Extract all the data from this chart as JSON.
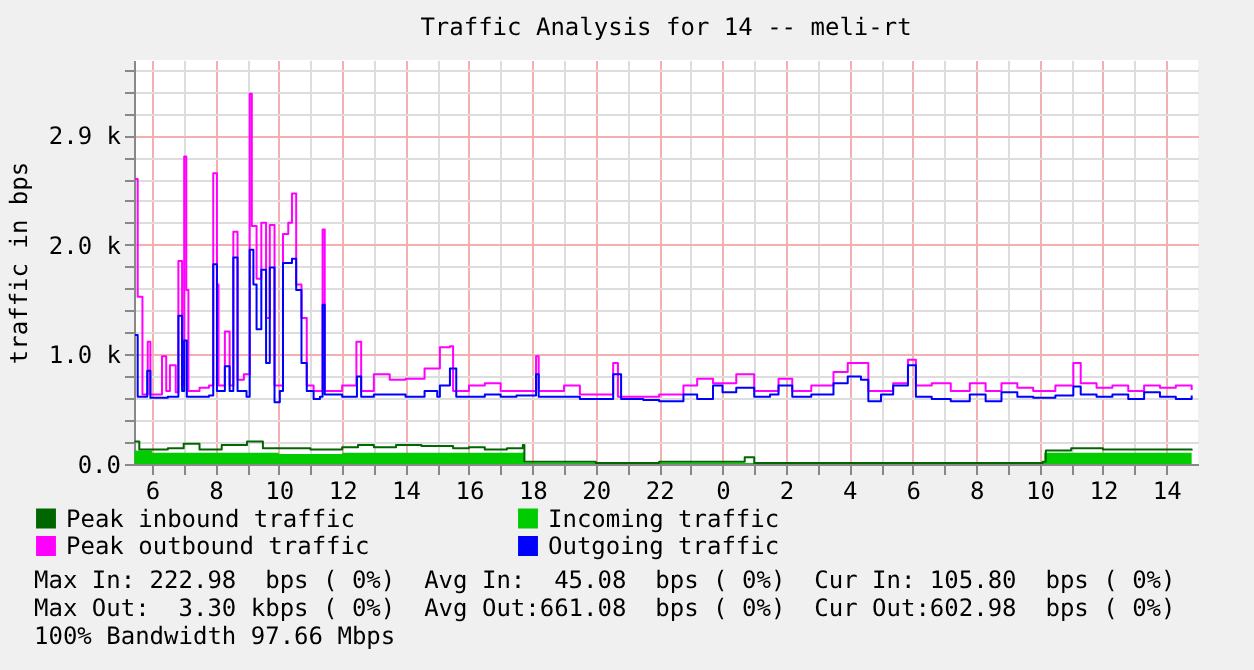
{
  "chart_data": {
    "type": "step",
    "title": "Traffic Analysis for 14 -- meli-rt",
    "ylabel": "traffic in bps",
    "xlim": [
      "--01-01T05:26",
      "--01-02T15:00"
    ],
    "xticks": [
      {
        "value": "--01-01T06:00",
        "label": "6"
      },
      {
        "value": "--01-01T07:00",
        "label": null
      },
      {
        "value": "--01-01T08:00",
        "label": "8"
      },
      {
        "value": "--01-01T09:00",
        "label": null
      },
      {
        "value": "--01-01T10:00",
        "label": "10"
      },
      {
        "value": "--01-01T11:00",
        "label": null
      },
      {
        "value": "--01-01T12:00",
        "label": "12"
      },
      {
        "value": "--01-01T13:00",
        "label": null
      },
      {
        "value": "--01-01T14:00",
        "label": "14"
      },
      {
        "value": "--01-01T15:00",
        "label": null
      },
      {
        "value": "--01-01T16:00",
        "label": "16"
      },
      {
        "value": "--01-01T17:00",
        "label": null
      },
      {
        "value": "--01-01T18:00",
        "label": "18"
      },
      {
        "value": "--01-01T19:00",
        "label": null
      },
      {
        "value": "--01-01T20:00",
        "label": "20"
      },
      {
        "value": "--01-01T21:00",
        "label": null
      },
      {
        "value": "--01-01T22:00",
        "label": "22"
      },
      {
        "value": "--01-01T23:00",
        "label": null
      },
      {
        "value": "--01-02T00:00",
        "label": "0"
      },
      {
        "value": "--01-02T01:00",
        "label": null
      },
      {
        "value": "--01-02T02:00",
        "label": "2"
      },
      {
        "value": "--01-02T03:00",
        "label": null
      },
      {
        "value": "--01-02T04:00",
        "label": "4"
      },
      {
        "value": "--01-02T05:00",
        "label": null
      },
      {
        "value": "--01-02T06:00",
        "label": "6"
      },
      {
        "value": "--01-02T07:00",
        "label": null
      },
      {
        "value": "--01-02T08:00",
        "label": "8"
      },
      {
        "value": "--01-02T09:00",
        "label": null
      },
      {
        "value": "--01-02T10:00",
        "label": "10"
      },
      {
        "value": "--01-02T11:00",
        "label": null
      },
      {
        "value": "--01-02T12:00",
        "label": "12"
      },
      {
        "value": "--01-02T13:00",
        "label": null
      },
      {
        "value": "--01-02T14:00",
        "label": "14"
      }
    ],
    "ylim": [
      0,
      3600
    ],
    "yticks": [
      {
        "value": 0,
        "label": "0.0"
      },
      {
        "value": 195,
        "label": null
      },
      {
        "value": 391,
        "label": null
      },
      {
        "value": 586,
        "label": null
      },
      {
        "value": 781,
        "label": null
      },
      {
        "value": 977,
        "label": "1.0 k"
      },
      {
        "value": 1172,
        "label": null
      },
      {
        "value": 1367,
        "label": null
      },
      {
        "value": 1563,
        "label": null
      },
      {
        "value": 1758,
        "label": null
      },
      {
        "value": 1953,
        "label": "2.0 k"
      },
      {
        "value": 2148,
        "label": null
      },
      {
        "value": 2344,
        "label": null
      },
      {
        "value": 2539,
        "label": null
      },
      {
        "value": 2734,
        "label": null
      },
      {
        "value": 2930,
        "label": "2.9 k"
      },
      {
        "value": 3125,
        "label": null
      },
      {
        "value": 3320,
        "label": null
      },
      {
        "value": 3516,
        "label": null
      }
    ],
    "grid": true,
    "legend": "bottom",
    "marker": "none",
    "line_style": "solid",
    "series": [
      {
        "name": "Peak inbound traffic",
        "color": "#006600",
        "x": [
          "--01-01T05:27",
          "--01-01T05:36",
          "--01-01T06:30",
          "--01-01T07:00",
          "--01-01T07:30",
          "--01-01T08:12",
          "--01-01T09:00",
          "--01-01T09:30",
          "--01-01T10:30",
          "--01-01T11:00",
          "--01-01T12:00",
          "--01-01T12:30",
          "--01-01T13:00",
          "--01-01T13:42",
          "--01-01T14:30",
          "--01-01T15:30",
          "--01-01T16:00",
          "--01-01T16:30",
          "--01-01T17:12",
          "--01-01T17:42",
          "--01-01T17:45",
          "--01-01T20:00",
          "--01-01T22:00",
          "--01-02T00:00",
          "--01-02T00:42",
          "--01-02T01:00",
          "--01-02T04:00",
          "--01-02T08:00",
          "--01-02T10:06",
          "--01-02T10:12",
          "--01-02T11:00",
          "--01-02T12:00",
          "--01-02T13:00",
          "--01-02T14:00",
          "--01-02T14:48"
        ],
        "values": [
          200,
          130,
          140,
          180,
          130,
          170,
          200,
          140,
          140,
          130,
          150,
          170,
          150,
          170,
          160,
          140,
          150,
          130,
          140,
          170,
          20,
          10,
          20,
          20,
          60,
          10,
          10,
          10,
          20,
          120,
          140,
          130,
          130,
          130,
          120
        ]
      },
      {
        "name": "Incoming traffic",
        "type": "area",
        "color": "#00cc00",
        "x": [
          "--01-01T05:27",
          "--01-01T06:00",
          "--01-01T08:00",
          "--01-01T10:00",
          "--01-01T12:00",
          "--01-01T14:00",
          "--01-01T16:00",
          "--01-01T17:42",
          "--01-01T17:45",
          "--01-01T20:00",
          "--01-02T00:00",
          "--01-02T04:00",
          "--01-02T10:06",
          "--01-02T10:09",
          "--01-02T12:00",
          "--01-02T14:48"
        ],
        "values": [
          120,
          100,
          100,
          90,
          100,
          100,
          100,
          110,
          10,
          10,
          10,
          10,
          10,
          100,
          100,
          110
        ]
      },
      {
        "name": "Peak outbound traffic",
        "color": "#ff00ff",
        "x": [
          "--01-01T05:28",
          "--01-01T05:33",
          "--01-01T05:42",
          "--01-01T05:52",
          "--01-01T05:57",
          "--01-01T06:19",
          "--01-01T06:27",
          "--01-01T06:34",
          "--01-01T06:45",
          "--01-01T06:50",
          "--01-01T06:57",
          "--01-01T07:01",
          "--01-01T07:05",
          "--01-01T07:09",
          "--01-01T07:30",
          "--01-01T07:48",
          "--01-01T07:56",
          "--01-01T08:03",
          "--01-01T08:06",
          "--01-01T08:18",
          "--01-01T08:27",
          "--01-01T08:34",
          "--01-01T08:42",
          "--01-01T08:54",
          "--01-01T09:05",
          "--01-01T09:09",
          "--01-01T09:18",
          "--01-01T09:27",
          "--01-01T09:36",
          "--01-01T09:43",
          "--01-01T09:52",
          "--01-01T10:00",
          "--01-01T10:08",
          "--01-01T10:18",
          "--01-01T10:25",
          "--01-01T10:33",
          "--01-01T10:43",
          "--01-01T10:53",
          "--01-01T11:06",
          "--01-01T11:23",
          "--01-01T11:27",
          "--01-01T12:00",
          "--01-01T12:27",
          "--01-01T12:36",
          "--01-01T13:00",
          "--01-01T13:30",
          "--01-01T14:00",
          "--01-01T14:36",
          "--01-01T15:05",
          "--01-01T15:24",
          "--01-01T15:30",
          "--01-01T16:00",
          "--01-01T16:30",
          "--01-01T17:00",
          "--01-01T17:30",
          "--01-01T18:07",
          "--01-01T18:12",
          "--01-01T19:00",
          "--01-01T19:30",
          "--01-01T20:33",
          "--01-01T20:42",
          "--01-01T21:30",
          "--01-01T22:00",
          "--01-01T22:46",
          "--01-01T23:12",
          "--01-01T23:42",
          "--01-02T00:26",
          "--01-02T01:00",
          "--01-02T01:46",
          "--01-02T02:12",
          "--01-02T02:48",
          "--01-02T03:30",
          "--01-02T03:57",
          "--01-02T04:22",
          "--01-02T04:36",
          "--01-02T05:23",
          "--01-02T05:51",
          "--01-02T06:06",
          "--01-02T06:36",
          "--01-02T07:12",
          "--01-02T07:48",
          "--01-02T08:18",
          "--01-02T08:48",
          "--01-02T09:18",
          "--01-02T09:48",
          "--01-02T10:30",
          "--01-02T11:04",
          "--01-02T11:18",
          "--01-02T11:48",
          "--01-02T12:18",
          "--01-02T12:48",
          "--01-02T13:18",
          "--01-02T13:48",
          "--01-02T14:18",
          "--01-02T14:48"
        ],
        "values": [
          2540,
          1490,
          620,
          1090,
          620,
          960,
          650,
          880,
          640,
          1810,
          700,
          2740,
          1550,
          650,
          680,
          700,
          2590,
          1600,
          700,
          1180,
          700,
          2070,
          750,
          800,
          3300,
          2120,
          1650,
          2150,
          1300,
          2130,
          700,
          700,
          2050,
          2150,
          2410,
          1600,
          1300,
          700,
          650,
          2090,
          650,
          700,
          1090,
          650,
          800,
          750,
          760,
          850,
          1040,
          1050,
          650,
          700,
          720,
          650,
          650,
          960,
          650,
          700,
          620,
          900,
          600,
          600,
          620,
          700,
          760,
          720,
          800,
          650,
          760,
          650,
          700,
          820,
          900,
          900,
          650,
          720,
          930,
          700,
          720,
          650,
          720,
          650,
          720,
          680,
          650,
          700,
          900,
          720,
          680,
          700,
          650,
          700,
          680,
          700,
          660
        ]
      },
      {
        "name": "Outgoing traffic",
        "color": "#0000ff",
        "x": [
          "--01-01T05:28",
          "--01-01T05:33",
          "--01-01T05:51",
          "--01-01T05:57",
          "--01-01T06:30",
          "--01-01T06:50",
          "--01-01T06:57",
          "--01-01T07:01",
          "--01-01T07:06",
          "--01-01T07:48",
          "--01-01T07:56",
          "--01-01T08:03",
          "--01-01T08:18",
          "--01-01T08:27",
          "--01-01T08:34",
          "--01-01T08:42",
          "--01-01T08:59",
          "--01-01T09:05",
          "--01-01T09:12",
          "--01-01T09:18",
          "--01-01T09:27",
          "--01-01T09:36",
          "--01-01T09:43",
          "--01-01T09:52",
          "--01-01T10:02",
          "--01-01T10:08",
          "--01-01T10:25",
          "--01-01T10:33",
          "--01-01T10:43",
          "--01-01T10:53",
          "--01-01T11:06",
          "--01-01T11:18",
          "--01-01T11:23",
          "--01-01T11:27",
          "--01-01T12:00",
          "--01-01T12:28",
          "--01-01T12:36",
          "--01-01T13:00",
          "--01-01T13:30",
          "--01-01T14:00",
          "--01-01T14:36",
          "--01-01T15:00",
          "--01-01T15:05",
          "--01-01T15:24",
          "--01-01T15:36",
          "--01-01T16:00",
          "--01-01T16:30",
          "--01-01T17:00",
          "--01-01T17:30",
          "--01-01T18:07",
          "--01-01T18:12",
          "--01-01T19:00",
          "--01-01T19:30",
          "--01-01T20:33",
          "--01-01T20:48",
          "--01-01T21:30",
          "--01-01T22:00",
          "--01-01T22:46",
          "--01-01T23:12",
          "--01-01T23:42",
          "--01-02T00:00",
          "--01-02T00:26",
          "--01-02T01:00",
          "--01-02T01:30",
          "--01-02T01:46",
          "--01-02T02:12",
          "--01-02T02:48",
          "--01-02T03:30",
          "--01-02T03:57",
          "--01-02T04:22",
          "--01-02T04:36",
          "--01-02T05:00",
          "--01-02T05:23",
          "--01-02T05:51",
          "--01-02T06:06",
          "--01-02T06:36",
          "--01-02T07:12",
          "--01-02T07:48",
          "--01-02T08:18",
          "--01-02T08:48",
          "--01-02T09:18",
          "--01-02T09:48",
          "--01-02T10:30",
          "--01-02T11:04",
          "--01-02T11:18",
          "--01-02T11:48",
          "--01-02T12:18",
          "--01-02T12:48",
          "--01-02T13:18",
          "--01-02T13:48",
          "--01-02T14:18",
          "--01-02T14:48"
        ],
        "values": [
          1150,
          600,
          830,
          590,
          600,
          1320,
          650,
          1100,
          600,
          610,
          1780,
          650,
          870,
          650,
          1840,
          650,
          600,
          1910,
          1600,
          1200,
          1730,
          900,
          1750,
          550,
          650,
          1790,
          1830,
          1550,
          900,
          650,
          580,
          600,
          1420,
          620,
          600,
          780,
          600,
          620,
          620,
          600,
          650,
          600,
          700,
          850,
          600,
          600,
          620,
          600,
          610,
          800,
          600,
          600,
          580,
          800,
          580,
          570,
          560,
          620,
          580,
          700,
          640,
          680,
          600,
          620,
          700,
          600,
          620,
          720,
          780,
          750,
          560,
          620,
          700,
          880,
          600,
          580,
          560,
          620,
          560,
          640,
          600,
          590,
          610,
          690,
          620,
          600,
          620,
          580,
          640,
          600,
          580,
          610
        ]
      }
    ],
    "annotations": [
      "Max In: 222.98  bps ( 0%)  Avg In:  45.08  bps ( 0%)  Cur In: 105.80  bps ( 0%)",
      "Max Out:  3.30 kbps ( 0%)  Avg Out:661.08  bps ( 0%)  Cur Out:602.98  bps ( 0%)",
      "100% Bandwidth 97.66 Mbps"
    ]
  }
}
